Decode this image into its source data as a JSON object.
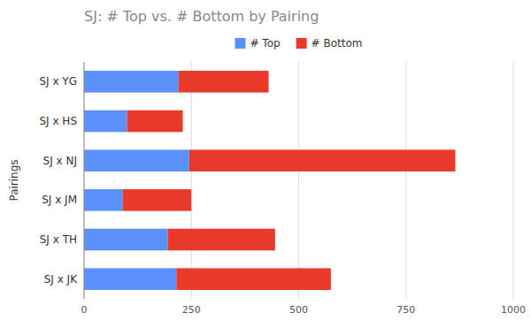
{
  "chart_data": {
    "type": "bar",
    "orientation": "horizontal",
    "stacked": true,
    "title": "SJ: # Top vs. # Bottom by Pairing",
    "ylabel": "Pairings",
    "categories": [
      "SJ x YG",
      "SJ x HS",
      "SJ x NJ",
      "SJ x JM",
      "SJ x TH",
      "SJ x JK"
    ],
    "series": [
      {
        "name": "# Top",
        "color": "#5B8FF9",
        "values": [
          220,
          100,
          245,
          90,
          195,
          215
        ]
      },
      {
        "name": "# Bottom",
        "color": "#E8392A",
        "values": [
          210,
          130,
          620,
          160,
          250,
          360
        ]
      }
    ],
    "xlim": [
      0,
      1000
    ],
    "xticks": [
      0,
      250,
      500,
      750,
      1000
    ],
    "grid": true,
    "legend": "top"
  }
}
